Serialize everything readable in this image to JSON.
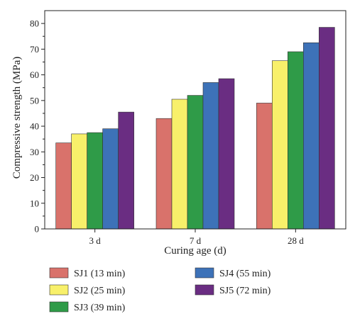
{
  "chart_data": {
    "type": "bar",
    "title": "",
    "xlabel": "Curing age (d)",
    "ylabel": "Compressive strength (MPa)",
    "categories": [
      "3 d",
      "7 d",
      "28 d"
    ],
    "ylim": [
      0,
      85
    ],
    "yticks": [
      0,
      10,
      20,
      30,
      40,
      50,
      60,
      70,
      80
    ],
    "grid": false,
    "legend_position": "bottom",
    "series": [
      {
        "name": "SJ1 (13 min)",
        "color": "#d9726b",
        "values": [
          33.5,
          43.0,
          49.0
        ]
      },
      {
        "name": "SJ2 (25 min)",
        "color": "#f8f06a",
        "values": [
          37.0,
          50.5,
          65.5
        ]
      },
      {
        "name": "SJ3 (39 min)",
        "color": "#2f9b48",
        "values": [
          37.5,
          52.0,
          69.0
        ]
      },
      {
        "name": "SJ4 (55 min)",
        "color": "#3d72b8",
        "values": [
          39.0,
          57.0,
          72.5
        ]
      },
      {
        "name": "SJ5 (72 min)",
        "color": "#6a2d82",
        "values": [
          45.5,
          58.5,
          78.5
        ]
      }
    ]
  }
}
